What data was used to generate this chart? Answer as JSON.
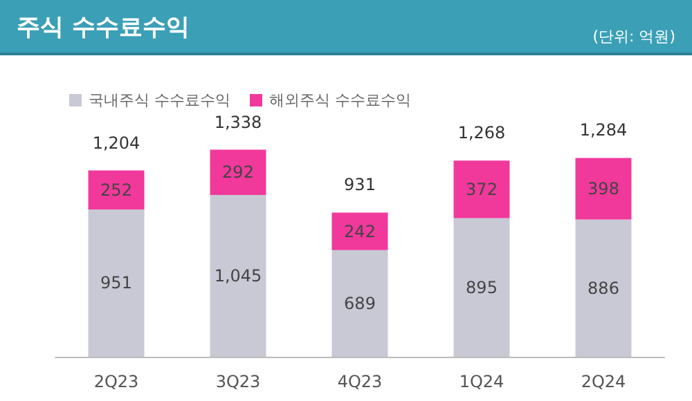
{
  "chart_data": {
    "type": "bar",
    "title": "주식 수수료수익",
    "annotations": [
      "(단위: 억원)"
    ],
    "categories": [
      "2Q23",
      "3Q23",
      "4Q23",
      "1Q24",
      "2Q24"
    ],
    "stacked": true,
    "legend": "top left",
    "tick_labels": "x",
    "series": [
      {
        "name": "국내주식 수수료수익",
        "color": "#c8c9d4",
        "values": [
          951,
          1045,
          689,
          895,
          886
        ],
        "value_labels": [
          "951",
          "1,045",
          "689",
          "895",
          "886"
        ]
      },
      {
        "name": "해외주식 수수료수익",
        "color": "#f0399b",
        "values": [
          252,
          292,
          242,
          372,
          398
        ],
        "value_labels": [
          "252",
          "292",
          "242",
          "372",
          "398"
        ]
      }
    ],
    "totals": [
      "1,204",
      "1,338",
      "931",
      "1,268",
      "1,284"
    ]
  }
}
